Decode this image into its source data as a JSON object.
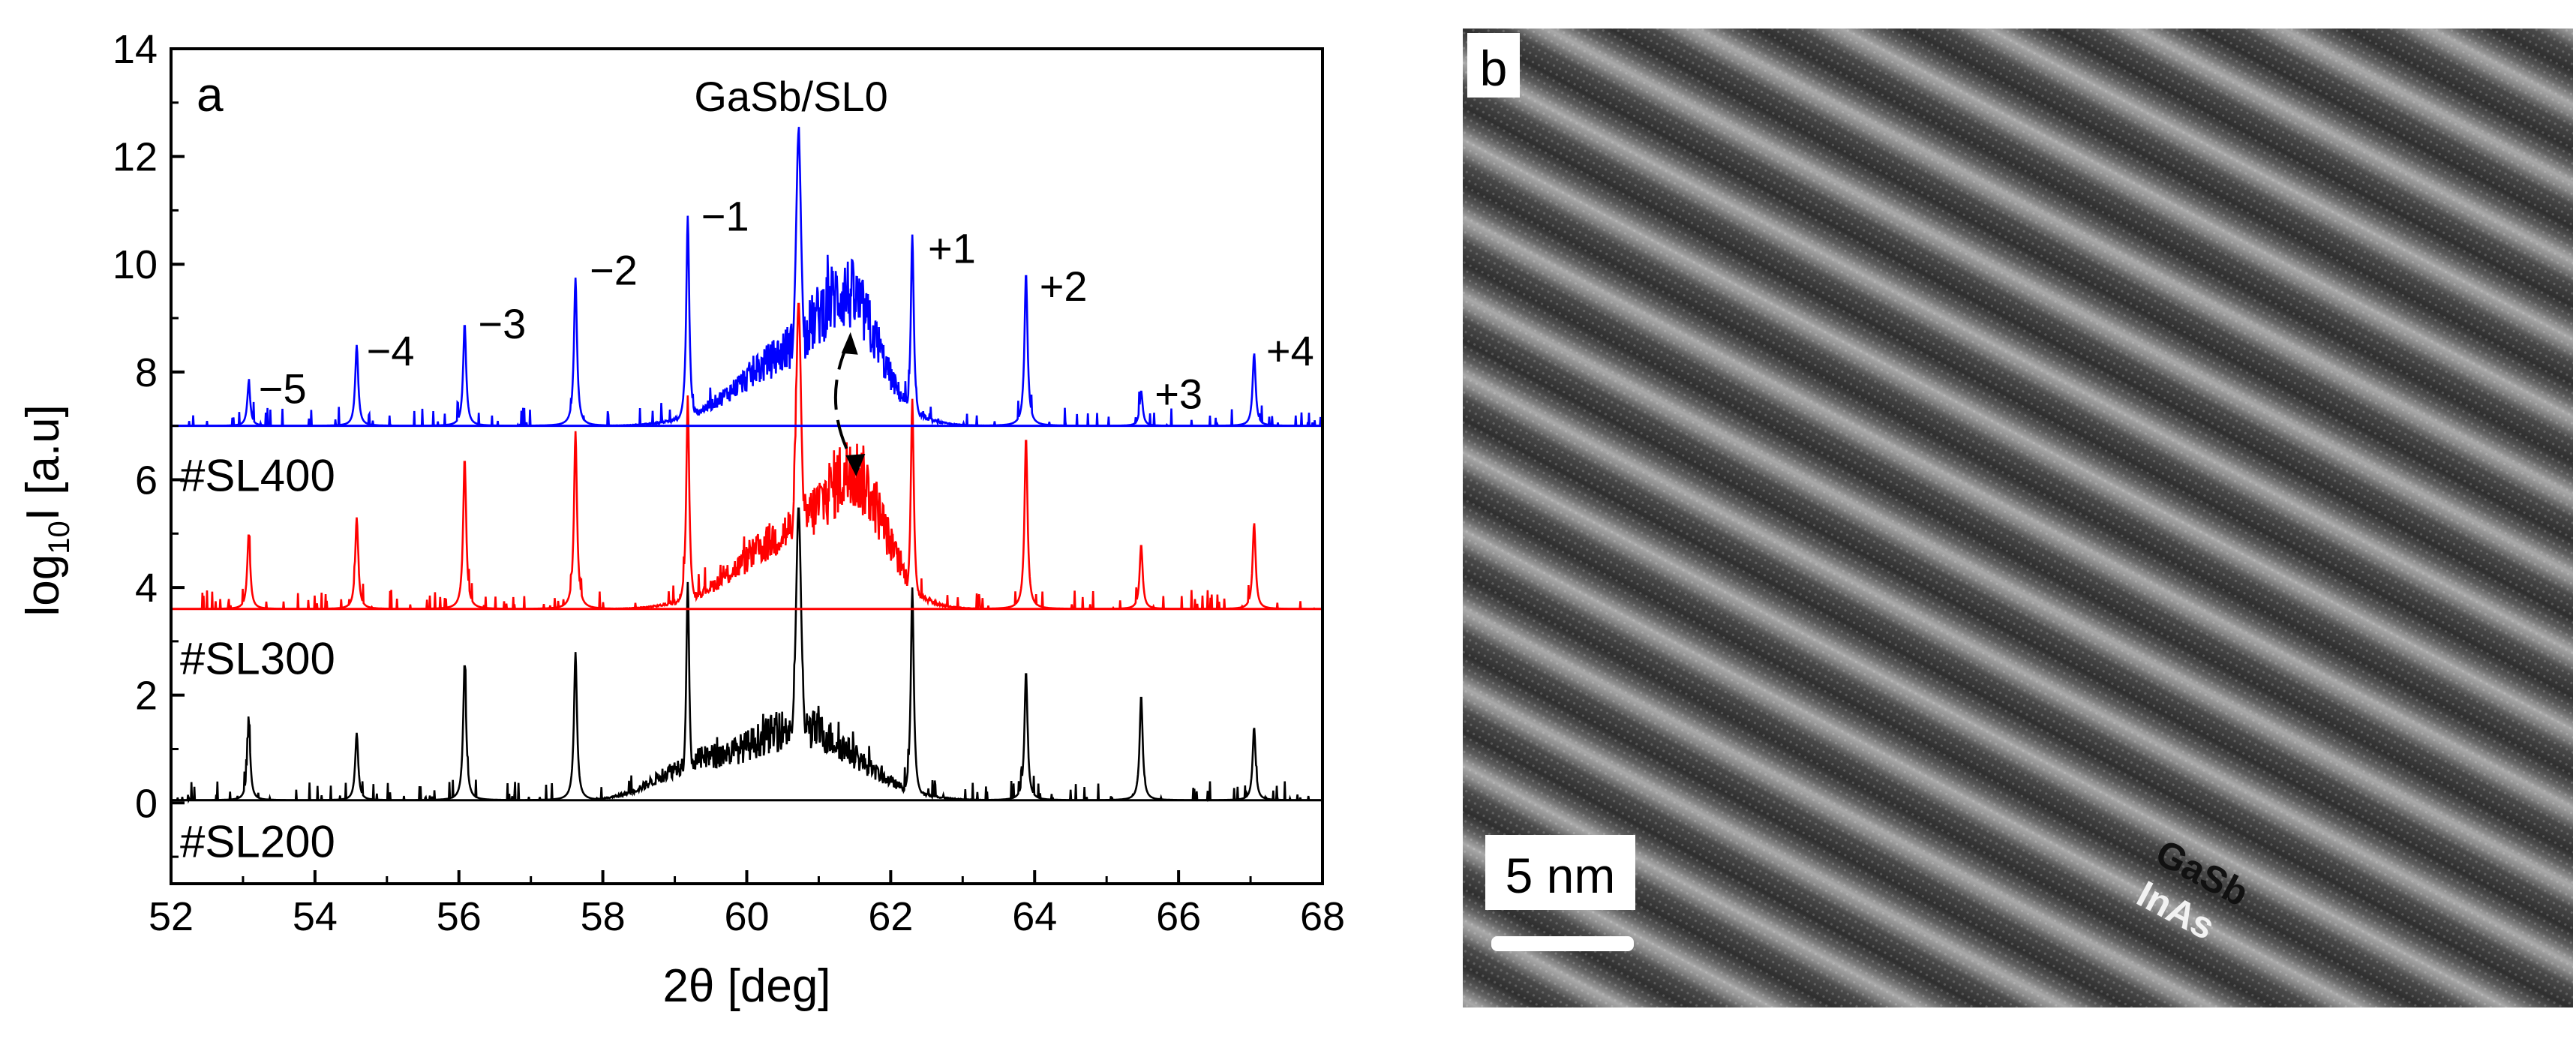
{
  "chart_data": {
    "type": "line",
    "panel_label": "a",
    "xlabel": "2θ [deg]",
    "ylabel": {
      "base": "log",
      "sub": "10",
      "rest": "I [a.u]"
    },
    "xlim": [
      52,
      68
    ],
    "ylim": [
      -1.5,
      14
    ],
    "xticks": [
      52,
      54,
      56,
      58,
      60,
      62,
      64,
      66,
      68
    ],
    "yticks": [
      0,
      2,
      4,
      6,
      8,
      10,
      12,
      14
    ],
    "grid": false,
    "main_peak_label": "GaSb/SL0",
    "satellite_positions": [
      53.08,
      54.58,
      56.08,
      57.62,
      59.18,
      62.3,
      63.88,
      65.48,
      67.05
    ],
    "main_peak_x": 60.72,
    "satellite_labels": [
      {
        "text": "−5",
        "x": 53.55,
        "y": 7.7
      },
      {
        "text": "−4",
        "x": 55.05,
        "y": 8.4
      },
      {
        "text": "−3",
        "x": 56.6,
        "y": 8.9
      },
      {
        "text": "−2",
        "x": 58.15,
        "y": 9.9
      },
      {
        "text": "−1",
        "x": 59.7,
        "y": 10.9
      },
      {
        "text": "+1",
        "x": 62.85,
        "y": 10.3
      },
      {
        "text": "+2",
        "x": 64.4,
        "y": 9.6
      },
      {
        "text": "+3",
        "x": 66.0,
        "y": 7.6
      },
      {
        "text": "+4",
        "x": 67.55,
        "y": 8.4
      }
    ],
    "series": [
      {
        "name": "#SL400",
        "color": "#0000ff",
        "baseline": 7.0,
        "label_y": 6.1,
        "main_peak": 12.45,
        "satellites": [
          7.8,
          8.5,
          8.9,
          9.75,
          10.9,
          10.55,
          9.85,
          7.65,
          8.35
        ],
        "hump": {
          "x": 61.45,
          "y": 9.0
        }
      },
      {
        "name": "#SL300",
        "color": "#ff0000",
        "baseline": 3.6,
        "label_y": 2.7,
        "main_peak": 9.3,
        "satellites": [
          5.0,
          5.3,
          6.4,
          6.9,
          7.5,
          7.5,
          6.8,
          4.8,
          5.2
        ],
        "hump": {
          "x": 61.55,
          "y": 5.75
        }
      },
      {
        "name": "#SL200",
        "color": "#000000",
        "baseline": 0.05,
        "label_y": -0.7,
        "main_peak": 5.5,
        "satellites": [
          1.5,
          1.3,
          2.6,
          2.8,
          4.1,
          4.0,
          2.45,
          2.0,
          1.4
        ],
        "hump": null
      }
    ]
  },
  "panel_b": {
    "label": "b",
    "scale_bar": "5 nm",
    "layer_label_1": "GaSb",
    "layer_label_2": "InAs"
  }
}
